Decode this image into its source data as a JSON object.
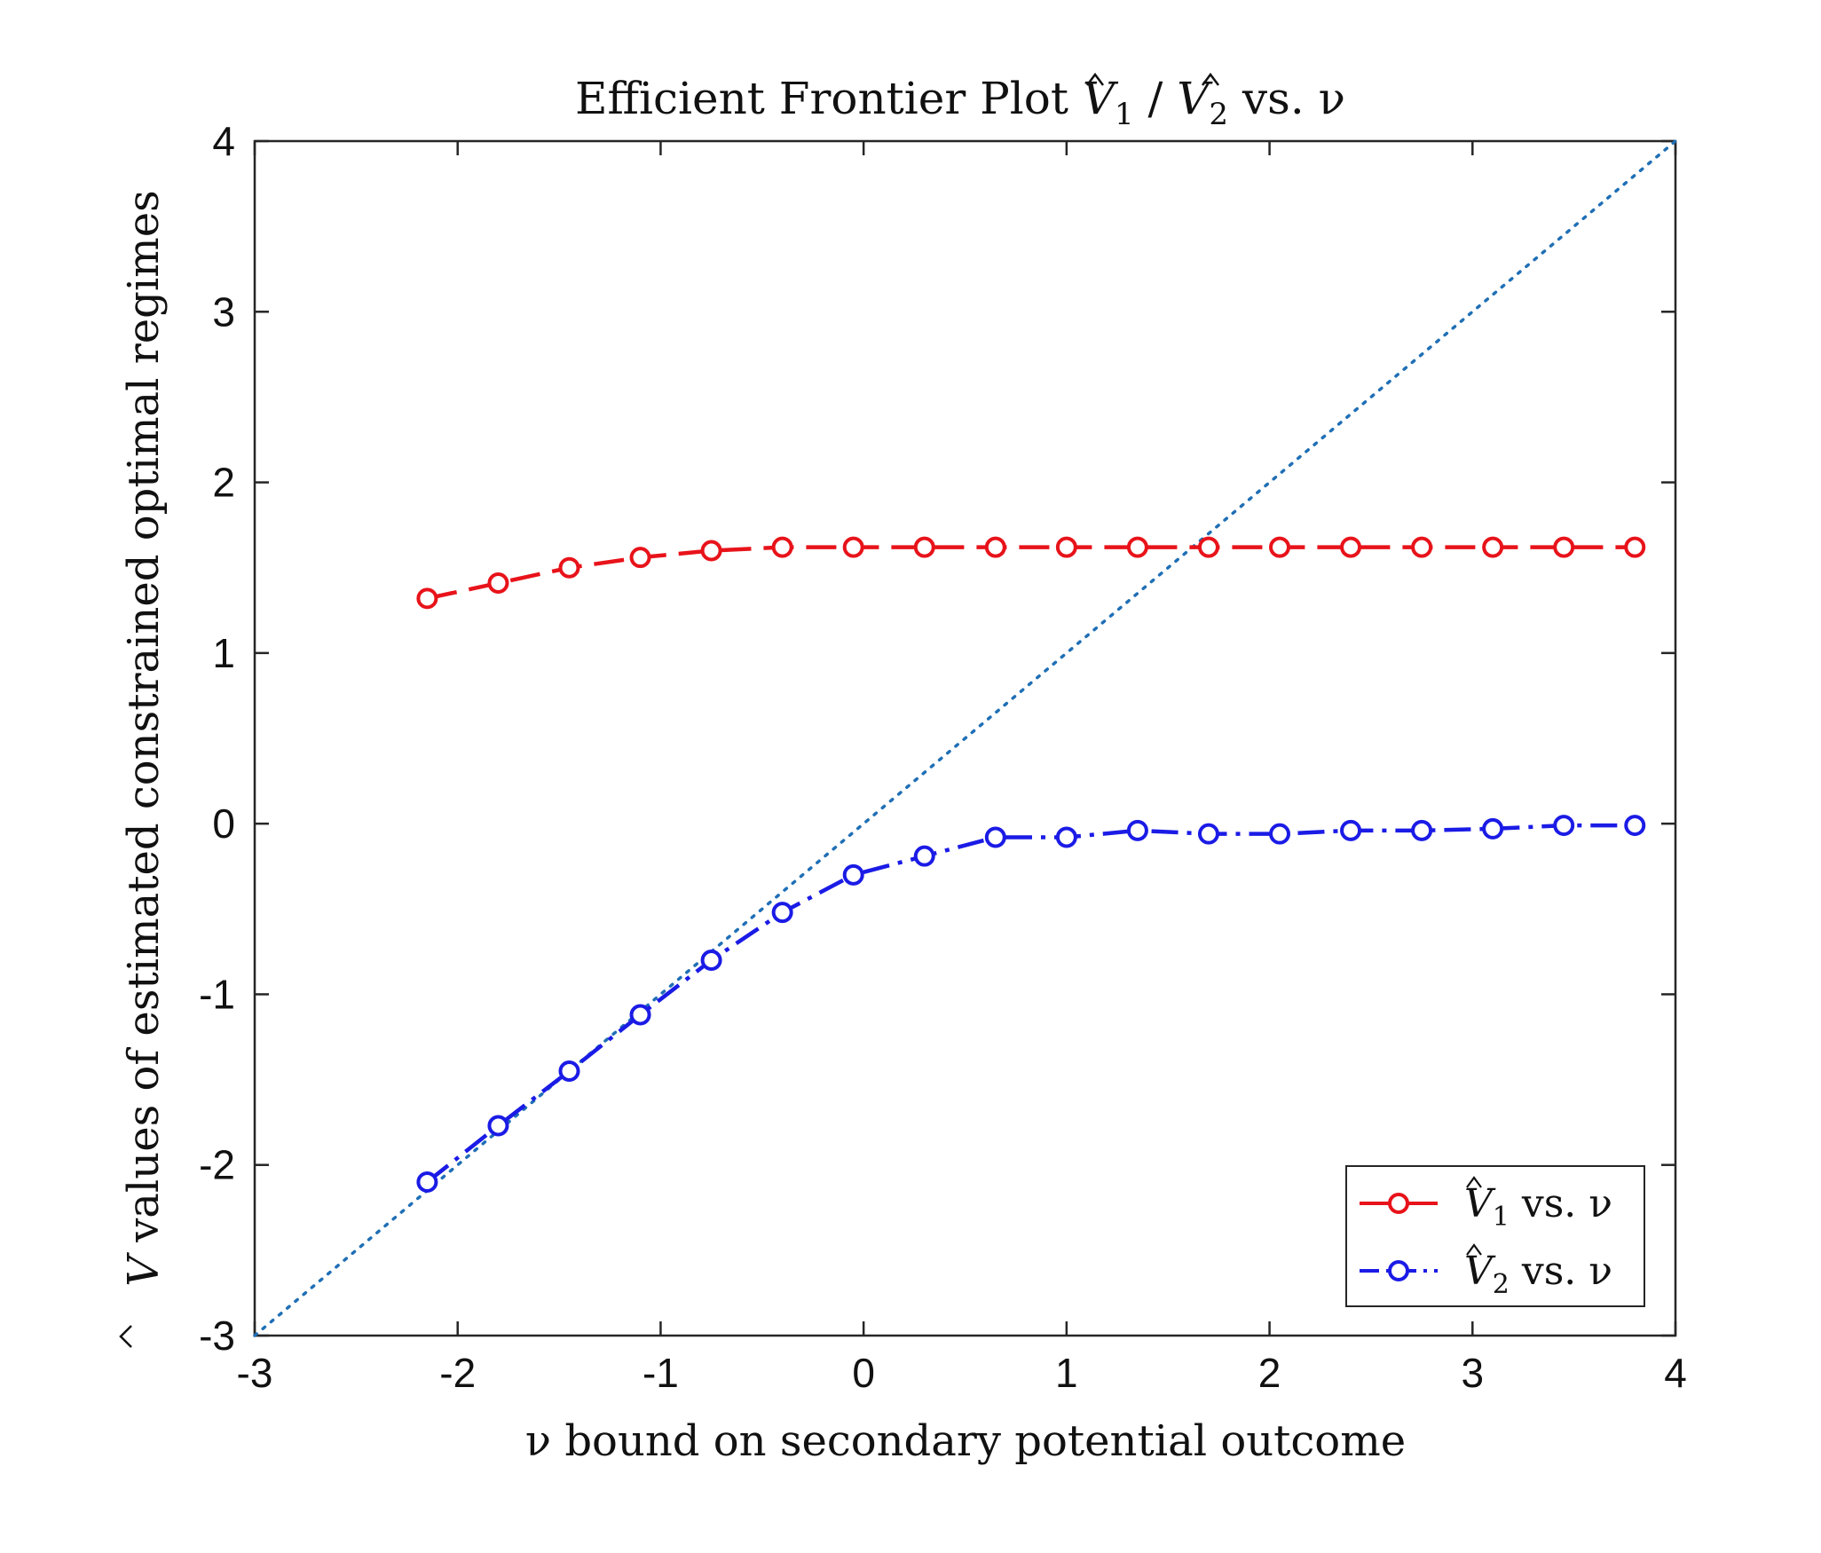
{
  "chart_data": {
    "type": "line",
    "title": {
      "prefix": "Efficient Frontier Plot ",
      "v1": "V",
      "v1_sub": "1",
      "sep": " / ",
      "v2": "V",
      "v2_sub": "2",
      "suffix": " vs. ν"
    },
    "xlabel": "ν bound on secondary potential outcome",
    "ylabel": {
      "symbol": "V",
      "text": " values of estimated constrained optimal regimes"
    },
    "xlim": [
      -3,
      4
    ],
    "ylim": [
      -3,
      4
    ],
    "xticks": [
      "-3",
      "-2",
      "-1",
      "0",
      "1",
      "2",
      "3",
      "4"
    ],
    "yticks": [
      "-3",
      "-2",
      "-1",
      "0",
      "1",
      "2",
      "3",
      "4"
    ],
    "grid": false,
    "legend_position": "bottom-right",
    "reference_line": {
      "style": "dotted",
      "color": "#1f6fb5",
      "x": [
        -3,
        4
      ],
      "y": [
        -3,
        4
      ]
    },
    "x": [
      -2.15,
      -1.8,
      -1.45,
      -1.1,
      -0.75,
      -0.4,
      -0.05,
      0.3,
      0.65,
      1.0,
      1.35,
      1.7,
      2.05,
      2.4,
      2.75,
      3.1,
      3.45,
      3.8
    ],
    "series": [
      {
        "name": "V1 vs. ν",
        "legend_symbol": "V",
        "legend_sub": "1",
        "legend_suffix": " vs. ν",
        "color": "#e8131a",
        "style": "dashed",
        "values": [
          1.32,
          1.41,
          1.5,
          1.56,
          1.6,
          1.62,
          1.62,
          1.62,
          1.62,
          1.62,
          1.62,
          1.62,
          1.62,
          1.62,
          1.62,
          1.62,
          1.62,
          1.62
        ]
      },
      {
        "name": "V2 vs. ν",
        "legend_symbol": "V",
        "legend_sub": "2",
        "legend_suffix": " vs. ν",
        "color": "#1b1be6",
        "style": "dash-dot",
        "values": [
          -2.1,
          -1.77,
          -1.45,
          -1.12,
          -0.8,
          -0.52,
          -0.3,
          -0.19,
          -0.08,
          -0.08,
          -0.04,
          -0.06,
          -0.06,
          -0.04,
          -0.04,
          -0.03,
          -0.01,
          -0.01
        ]
      }
    ]
  }
}
